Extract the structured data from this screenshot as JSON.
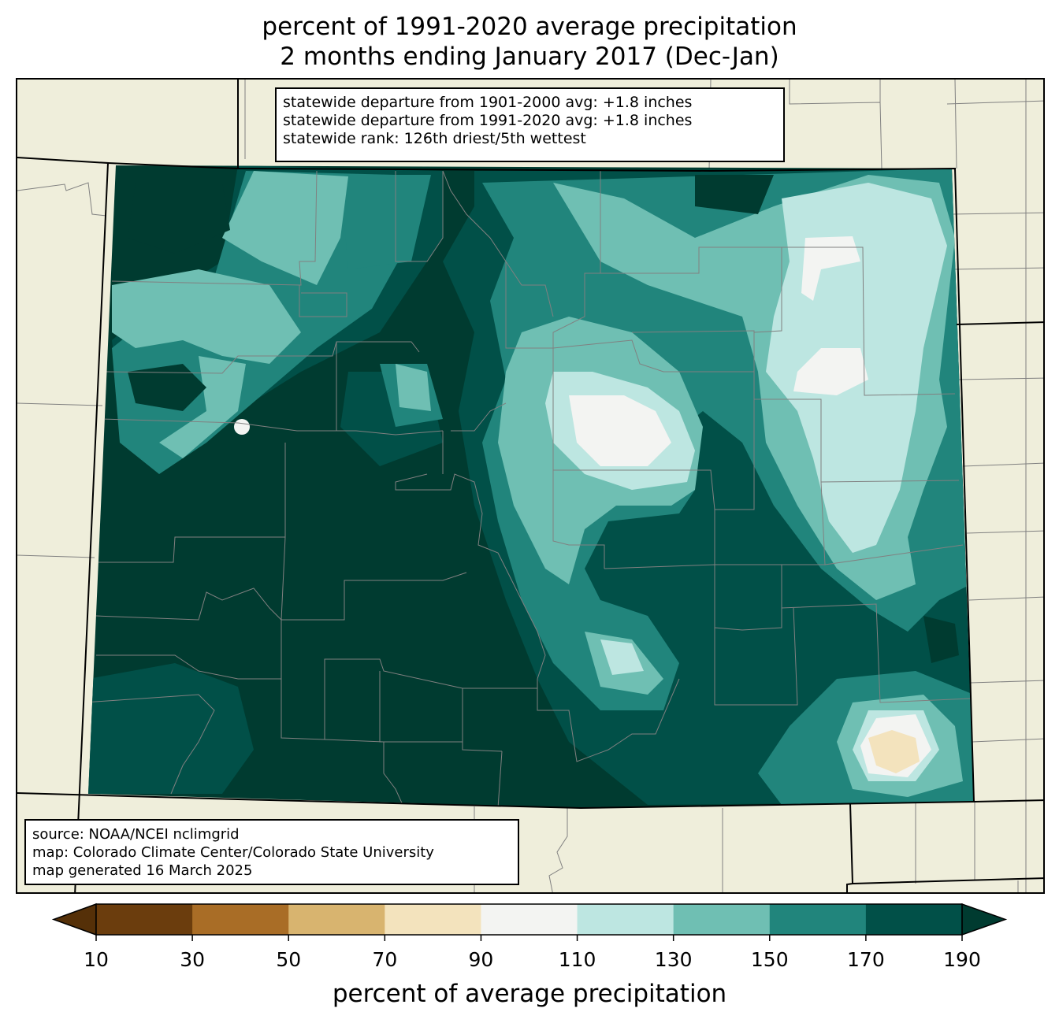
{
  "title": {
    "line1": "percent of 1991-2020 average precipitation",
    "line2": "2 months ending January 2017 (Dec-Jan)"
  },
  "stats": {
    "line1": "statewide departure from 1901-2000 avg: +1.8 inches",
    "line2": "statewide departure from 1991-2020 avg: +1.8 inches",
    "line3": "statewide rank: 126th driest/5th wettest"
  },
  "source": {
    "line1": "source: NOAA/NCEI nclimgrid",
    "line2": "map: Colorado Climate Center/Colorado State University",
    "line3": "map generated 16 March 2025"
  },
  "colorbar": {
    "label": "percent of average precipitation",
    "ticks": [
      "10",
      "30",
      "50",
      "70",
      "90",
      "110",
      "130",
      "150",
      "170",
      "190"
    ],
    "colors": [
      "#6b3d0d",
      "#a96d26",
      "#d8b46f",
      "#f3e3bd",
      "#f3f4f2",
      "#bde6e1",
      "#6fbfb3",
      "#21857c",
      "#015048"
    ],
    "under_color": "#553008",
    "over_color": "#003b30"
  },
  "map_colors": {
    "background": "#efeedb",
    "c90_110": "#f3f4f2",
    "c110_130": "#bde6e1",
    "c130_150": "#6fbfb3",
    "c150_170": "#21857c",
    "c170_190": "#015048",
    "c190_plus": "#003b30",
    "c70_90": "#f3e3bd",
    "county_lines": "#808080",
    "state_lines": "#000000"
  }
}
